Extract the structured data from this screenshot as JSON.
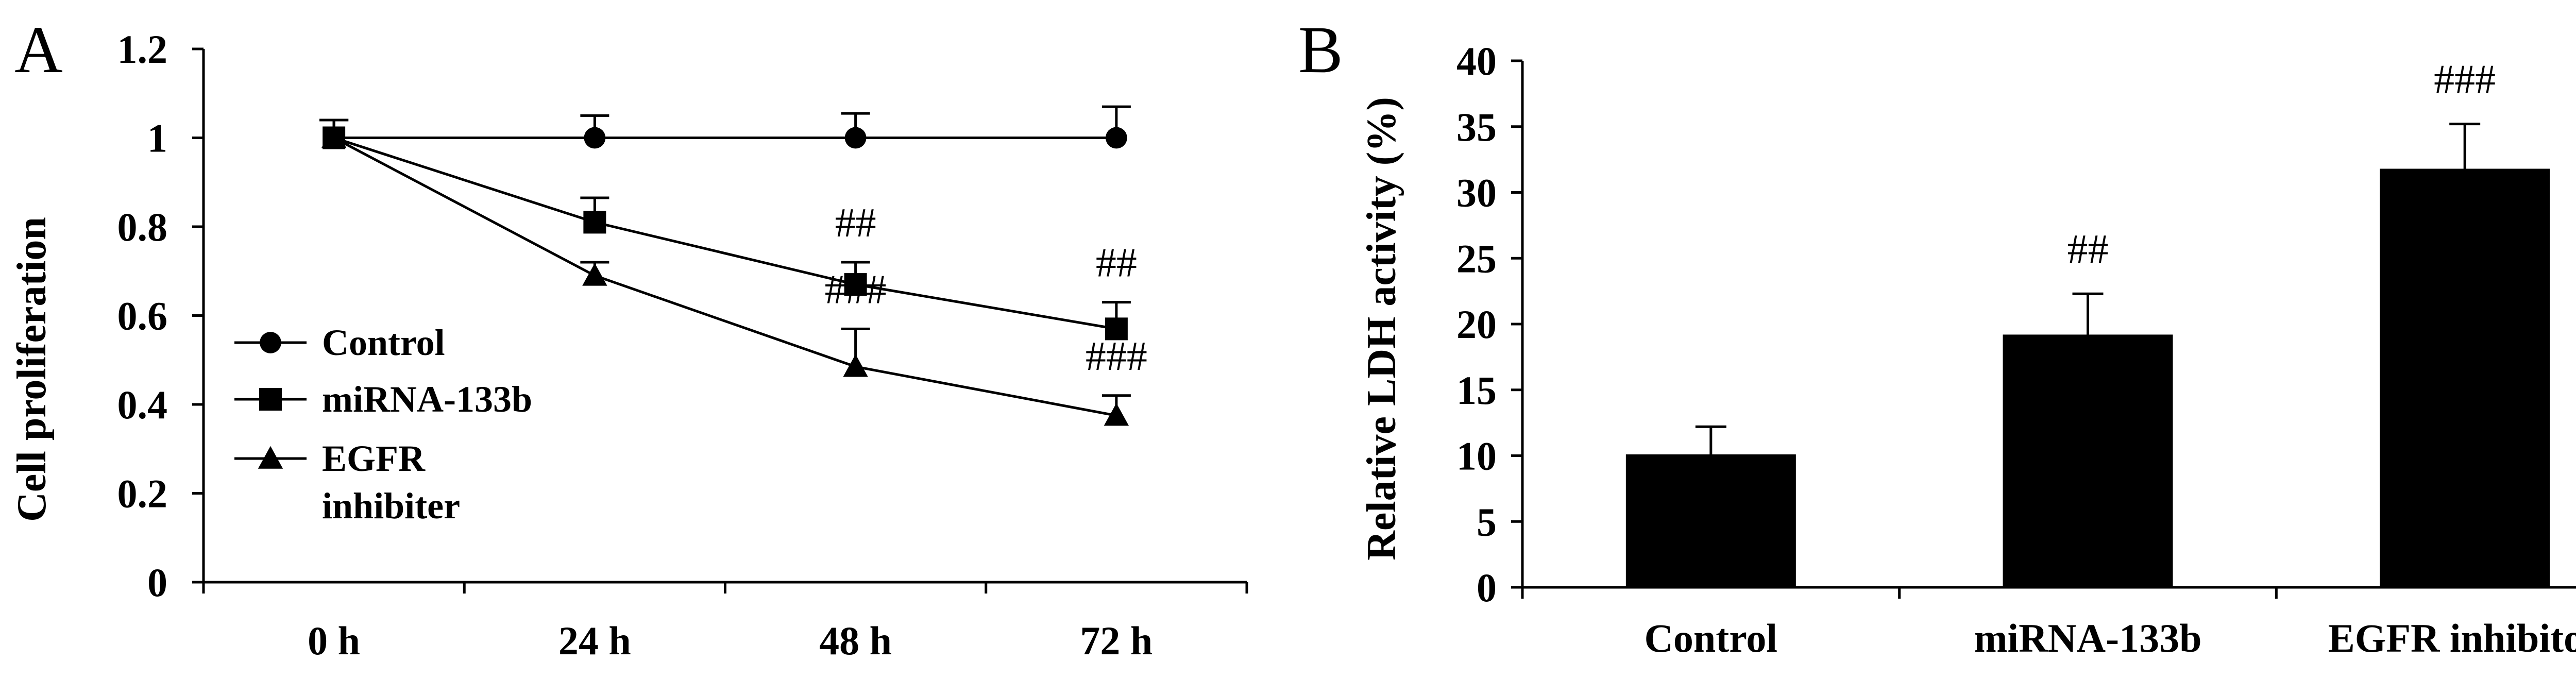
{
  "chart_data": [
    {
      "panel": "A",
      "type": "line",
      "ylabel": "Cell proliferation",
      "ylim": [
        0,
        1.2
      ],
      "y_ticks": [
        "0",
        "0.2",
        "0.4",
        "0.6",
        "0.8",
        "1",
        "1.2"
      ],
      "categories": [
        "0 h",
        "24 h",
        "48 h",
        "72 h"
      ],
      "series": [
        {
          "name": "Control",
          "marker": "circle",
          "values": [
            1.0,
            1.0,
            1.0,
            1.0
          ],
          "errors": [
            0.04,
            0.05,
            0.055,
            0.07
          ],
          "annotations": [
            "",
            "",
            "",
            ""
          ]
        },
        {
          "name": "miRNA-133b",
          "marker": "square",
          "values": [
            1.0,
            0.81,
            0.67,
            0.57
          ],
          "errors": [
            0.04,
            0.055,
            0.05,
            0.06
          ],
          "annotations": [
            "",
            "",
            "##",
            "##"
          ]
        },
        {
          "name": "EGFR inhibiter",
          "marker": "triangle",
          "values": [
            1.0,
            0.69,
            0.485,
            0.375
          ],
          "errors": [
            0.04,
            0.03,
            0.085,
            0.045
          ],
          "annotations": [
            "",
            "",
            "###",
            "###"
          ]
        }
      ],
      "legend_position": "left-center",
      "grid": false
    },
    {
      "panel": "B",
      "type": "bar",
      "ylabel": "Relative LDH activity (%)",
      "ylim": [
        0,
        40
      ],
      "y_ticks": [
        "0",
        "5",
        "10",
        "15",
        "20",
        "25",
        "30",
        "35",
        "40"
      ],
      "categories": [
        "Control",
        "miRNA-133b",
        "EGFR inhibitor"
      ],
      "values": [
        10.1,
        19.2,
        31.8
      ],
      "errors": [
        2.1,
        3.1,
        3.4
      ],
      "annotations": [
        "",
        "##",
        "###"
      ],
      "bar_color": "#000000",
      "grid": false
    }
  ]
}
